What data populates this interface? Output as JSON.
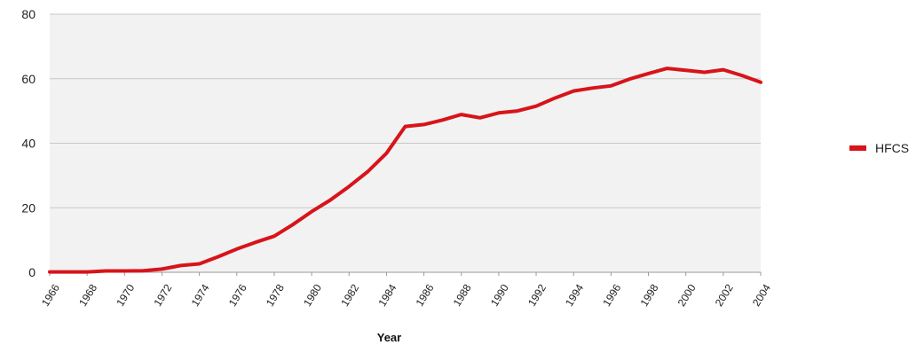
{
  "chart_data": {
    "type": "line",
    "title": "",
    "xlabel": "Year",
    "ylabel": "",
    "ylim": [
      0,
      80
    ],
    "yticks": [
      0,
      20,
      40,
      60,
      80
    ],
    "xlim": [
      1966,
      2004
    ],
    "xticks": [
      "1966",
      "1968",
      "1970",
      "1972",
      "1974",
      "1976",
      "1978",
      "1980",
      "1982",
      "1984",
      "1986",
      "1988",
      "1990",
      "1992",
      "1994",
      "1996",
      "1998",
      "2000",
      "2002",
      "2004"
    ],
    "grid": true,
    "legend_position": "right",
    "series": [
      {
        "name": "HFCS",
        "color": "#d7141a",
        "x": [
          1966,
          1967,
          1968,
          1969,
          1970,
          1971,
          1972,
          1973,
          1974,
          1975,
          1976,
          1977,
          1978,
          1979,
          1980,
          1981,
          1982,
          1983,
          1984,
          1985,
          1986,
          1987,
          1988,
          1989,
          1990,
          1991,
          1992,
          1993,
          1994,
          1995,
          1996,
          1997,
          1998,
          1999,
          2000,
          2001,
          2002,
          2003,
          2004
        ],
        "y": [
          0.1,
          0.1,
          0.1,
          0.4,
          0.4,
          0.5,
          1.0,
          2.1,
          2.6,
          4.8,
          7.2,
          9.3,
          11.2,
          14.8,
          18.8,
          22.4,
          26.6,
          31.2,
          36.9,
          45.2,
          45.8,
          47.2,
          48.9,
          47.9,
          49.4,
          50.0,
          51.5,
          54.0,
          56.2,
          57.1,
          57.8,
          59.9,
          61.6,
          63.2,
          62.6,
          62.0,
          62.8,
          61.0,
          58.9
        ]
      }
    ]
  },
  "legend": {
    "items": [
      {
        "label": "HFCS",
        "color": "#d7141a"
      }
    ]
  }
}
